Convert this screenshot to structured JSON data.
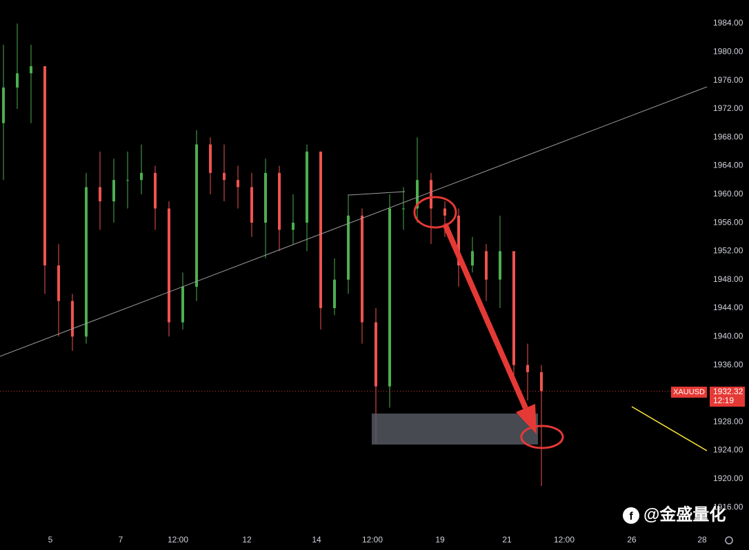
{
  "chart_data": {
    "type": "candlestick",
    "symbol": "XAUUSD",
    "countdown": "12:19",
    "watermark": "@金盛量化",
    "up_color": "#4caf50",
    "down_color": "#ef5350",
    "grid": false,
    "open": [
      1970,
      1975,
      1977,
      1978,
      1950,
      1945,
      1940,
      1961,
      1959,
      1962,
      1962,
      1963,
      1958,
      1942,
      1947,
      1967,
      1963,
      1962,
      1961,
      1956,
      1963,
      1955,
      1956,
      1966,
      1944,
      1948,
      1957,
      1942,
      1933,
      1958,
      1958,
      1962,
      1958,
      1957,
      1950,
      1952,
      1948,
      1952,
      1936,
      1935
    ],
    "high": [
      1981,
      1984,
      1981,
      1978,
      1953,
      1946,
      1963,
      1966,
      1965,
      1966,
      1967,
      1964,
      1959,
      1949,
      1969,
      1968,
      1967,
      1964,
      1963,
      1965,
      1964,
      1960,
      1967,
      1966,
      1951,
      1960,
      1958,
      1944,
      1960,
      1961,
      1968,
      1963,
      1959,
      1958,
      1954,
      1953,
      1957,
      1952,
      1939,
      1936
    ],
    "low": [
      1962,
      1972,
      1970,
      1946,
      1940,
      1938,
      1939,
      1955,
      1956,
      1958,
      1960,
      1955,
      1940,
      1941,
      1945,
      1960,
      1959,
      1958,
      1954,
      1951,
      1952,
      1953,
      1952,
      1941,
      1943,
      1946,
      1939,
      1925,
      1930,
      1955,
      1956,
      1953,
      1954,
      1947,
      1949,
      1945,
      1944,
      1934,
      1931,
      1919
    ],
    "close": [
      1975,
      1977,
      1978,
      1950,
      1945,
      1940,
      1961,
      1959,
      1962,
      1962,
      1963,
      1958,
      1942,
      1947,
      1967,
      1963,
      1962,
      1961,
      1956,
      1963,
      1955,
      1956,
      1966,
      1944,
      1948,
      1957,
      1942,
      1933,
      1958,
      1958,
      1962,
      1958,
      1957,
      1950,
      1952,
      1948,
      1952,
      1936,
      1935,
      1932.32
    ],
    "xlim": [
      -0.25,
      51
    ],
    "xticks": [
      {
        "value": 3.4,
        "label": "5"
      },
      {
        "value": 8.5,
        "label": "7"
      },
      {
        "value": 12.65,
        "label": "12:00"
      },
      {
        "value": 17.65,
        "label": "12"
      },
      {
        "value": 22.7,
        "label": "14"
      },
      {
        "value": 26.75,
        "label": "12:00"
      },
      {
        "value": 31.65,
        "label": "19"
      },
      {
        "value": 36.5,
        "label": "21"
      },
      {
        "value": 40.65,
        "label": "12:00"
      },
      {
        "value": 45.55,
        "label": "26"
      },
      {
        "value": 50.65,
        "label": "28"
      }
    ],
    "ylim": [
      1913.2,
      1987.3
    ],
    "yticks": [
      {
        "value": 1916,
        "label": "1916.00"
      },
      {
        "value": 1920,
        "label": "1920.00"
      },
      {
        "value": 1924,
        "label": "1924.00"
      },
      {
        "value": 1928,
        "label": "1928.00"
      },
      {
        "value": 1932,
        "label": "1932.00"
      },
      {
        "value": 1936,
        "label": "1936.00"
      },
      {
        "value": 1940,
        "label": "1940.00"
      },
      {
        "value": 1944,
        "label": "1944.00"
      },
      {
        "value": 1948,
        "label": "1948.00"
      },
      {
        "value": 1952,
        "label": "1952.00"
      },
      {
        "value": 1956,
        "label": "1956.00"
      },
      {
        "value": 1960,
        "label": "1960.00"
      },
      {
        "value": 1964,
        "label": "1964.00"
      },
      {
        "value": 1968,
        "label": "1968.00"
      },
      {
        "value": 1972,
        "label": "1972.00"
      },
      {
        "value": 1976,
        "label": "1976.00"
      },
      {
        "value": 1980,
        "label": "1980.00"
      },
      {
        "value": 1984,
        "label": "1984.00"
      }
    ]
  }
}
